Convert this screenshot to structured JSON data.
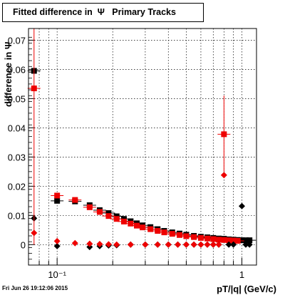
{
  "title": "Fitted difference in  Ψ   Primary Tracks",
  "footer": "Fri Jun 26 19:12:06 2015",
  "chart_data": {
    "type": "scatter",
    "title": "Fitted difference in  Ψ   Primary Tracks",
    "xlabel": "pT/|q| (GeV/c)",
    "ylabel": "difference in Ψ",
    "x_scale": "log",
    "xlim": [
      0.07,
      1.2
    ],
    "ylim": [
      -0.007,
      0.074
    ],
    "grid": true,
    "x_ticks": [
      {
        "value": 0.1,
        "label": "10⁻¹"
      },
      {
        "value": 1,
        "label": "1"
      }
    ],
    "y_ticks": [
      0,
      0.01,
      0.02,
      0.03,
      0.04,
      0.05,
      0.06,
      0.07
    ],
    "colors": {
      "black": "#000000",
      "red": "#ee0000"
    },
    "series": [
      {
        "color": "#000000",
        "marker": "square",
        "x": [
          0.075,
          0.1,
          0.125,
          0.15,
          0.17,
          0.19,
          0.21,
          0.23,
          0.25,
          0.27,
          0.29,
          0.32,
          0.35,
          0.38,
          0.42,
          0.46,
          0.5,
          0.55,
          0.6,
          0.65,
          0.7,
          0.75,
          0.8,
          0.85,
          0.9,
          0.95,
          1.0,
          1.05,
          1.1
        ],
        "y": [
          0.0595,
          0.015,
          0.0148,
          0.0135,
          0.0118,
          0.0108,
          0.0097,
          0.0088,
          0.008,
          0.0073,
          0.0066,
          0.006,
          0.0053,
          0.0047,
          0.0042,
          0.0038,
          0.0034,
          0.003,
          0.0027,
          0.0025,
          0.0023,
          0.0021,
          0.002,
          0.0018,
          0.0017,
          0.0016,
          0.0015,
          0.0015,
          0.0015
        ]
      },
      {
        "color": "#ee0000",
        "marker": "square",
        "x": [
          0.075,
          0.1,
          0.125,
          0.15,
          0.17,
          0.19,
          0.21,
          0.23,
          0.25,
          0.27,
          0.29,
          0.32,
          0.35,
          0.38,
          0.42,
          0.46,
          0.5,
          0.55,
          0.6,
          0.65,
          0.7,
          0.75,
          0.8,
          0.85,
          0.9,
          0.95
        ],
        "y": [
          0.0535,
          0.0168,
          0.0153,
          0.0128,
          0.0112,
          0.0098,
          0.0088,
          0.0079,
          0.0072,
          0.0065,
          0.0059,
          0.0053,
          0.0047,
          0.0042,
          0.0037,
          0.0033,
          0.0029,
          0.0026,
          0.0023,
          0.0021,
          0.0019,
          0.0017,
          0.0016,
          0.0015,
          0.0014,
          0.0013
        ],
        "outlier": {
          "x": 0.8,
          "y": 0.0378,
          "err_low": 0.025,
          "err_high": 0.051
        }
      },
      {
        "color": "#000000",
        "marker": "diamond",
        "x": [
          0.075,
          0.1,
          0.15,
          0.17,
          0.19,
          0.21,
          0.25,
          0.3,
          0.35,
          0.4,
          0.45,
          0.5,
          0.55,
          0.6,
          0.65,
          0.7,
          0.75,
          0.85,
          0.9,
          1.0,
          1.05,
          1.1
        ],
        "y": [
          0.009,
          -0.0005,
          -0.0008,
          -0.0005,
          -0.0003,
          -0.0002,
          0.0,
          0.0,
          0.0,
          0.0,
          0.0,
          0.0,
          0.0,
          0.0,
          0.0,
          0.0,
          0.0,
          0.0,
          0.0,
          0.0132,
          0.0,
          0.0
        ]
      },
      {
        "color": "#ee0000",
        "marker": "diamond",
        "x": [
          0.075,
          0.1,
          0.125,
          0.15,
          0.17,
          0.19,
          0.21,
          0.25,
          0.3,
          0.35,
          0.4,
          0.45,
          0.5,
          0.55,
          0.6,
          0.65,
          0.7,
          0.75
        ],
        "y": [
          0.004,
          0.0012,
          0.0005,
          0.0003,
          0.0002,
          0.0001,
          0.0,
          0.0,
          0.0,
          0.0,
          0.0,
          0.0,
          0.0,
          0.0,
          0.0,
          0.0,
          0.0,
          0.0
        ],
        "outlier": {
          "x": 0.8,
          "y": 0.0238
        }
      }
    ]
  }
}
